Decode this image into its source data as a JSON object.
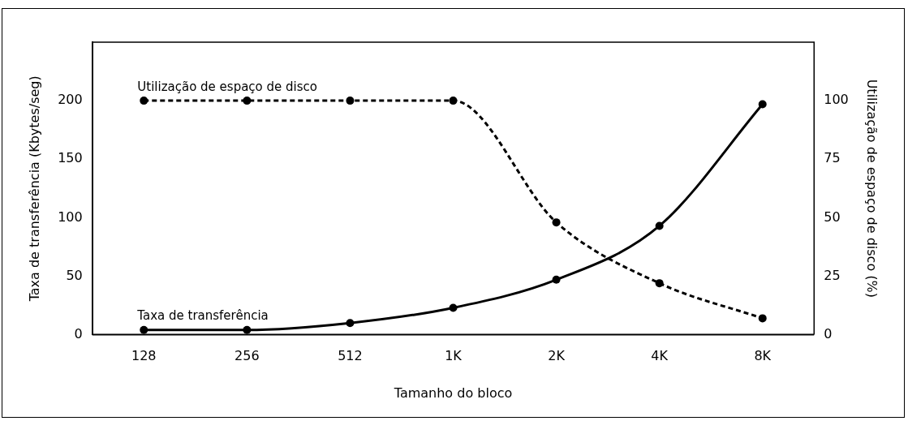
{
  "chart_data": {
    "type": "line",
    "xlabel": "Tamanho do bloco",
    "ylabel": "Taxa de transferência (Kbytes/seg)",
    "y2label": "Utilização de espaço de disco (%)",
    "categories": [
      "128",
      "256",
      "512",
      "1K",
      "2K",
      "4K",
      "8K"
    ],
    "series": [
      {
        "name": "Utilização de espaço de disco",
        "color": "#000000",
        "axis": "y2",
        "line_style": "dashed",
        "values": [
          100,
          100,
          100,
          100,
          48,
          22,
          7
        ]
      },
      {
        "name": "Taxa de transferência",
        "color": "#000000",
        "line_style": "solid",
        "values": [
          4,
          4,
          10,
          23,
          47,
          93,
          197
        ]
      }
    ],
    "ylim": [
      0,
      250
    ],
    "yticks": [
      0,
      50,
      100,
      150,
      200
    ],
    "y2lim": [
      0,
      125
    ],
    "y2ticks": [
      0,
      25,
      50,
      75,
      100
    ],
    "grid": false,
    "legend": false,
    "marker": "circle"
  }
}
